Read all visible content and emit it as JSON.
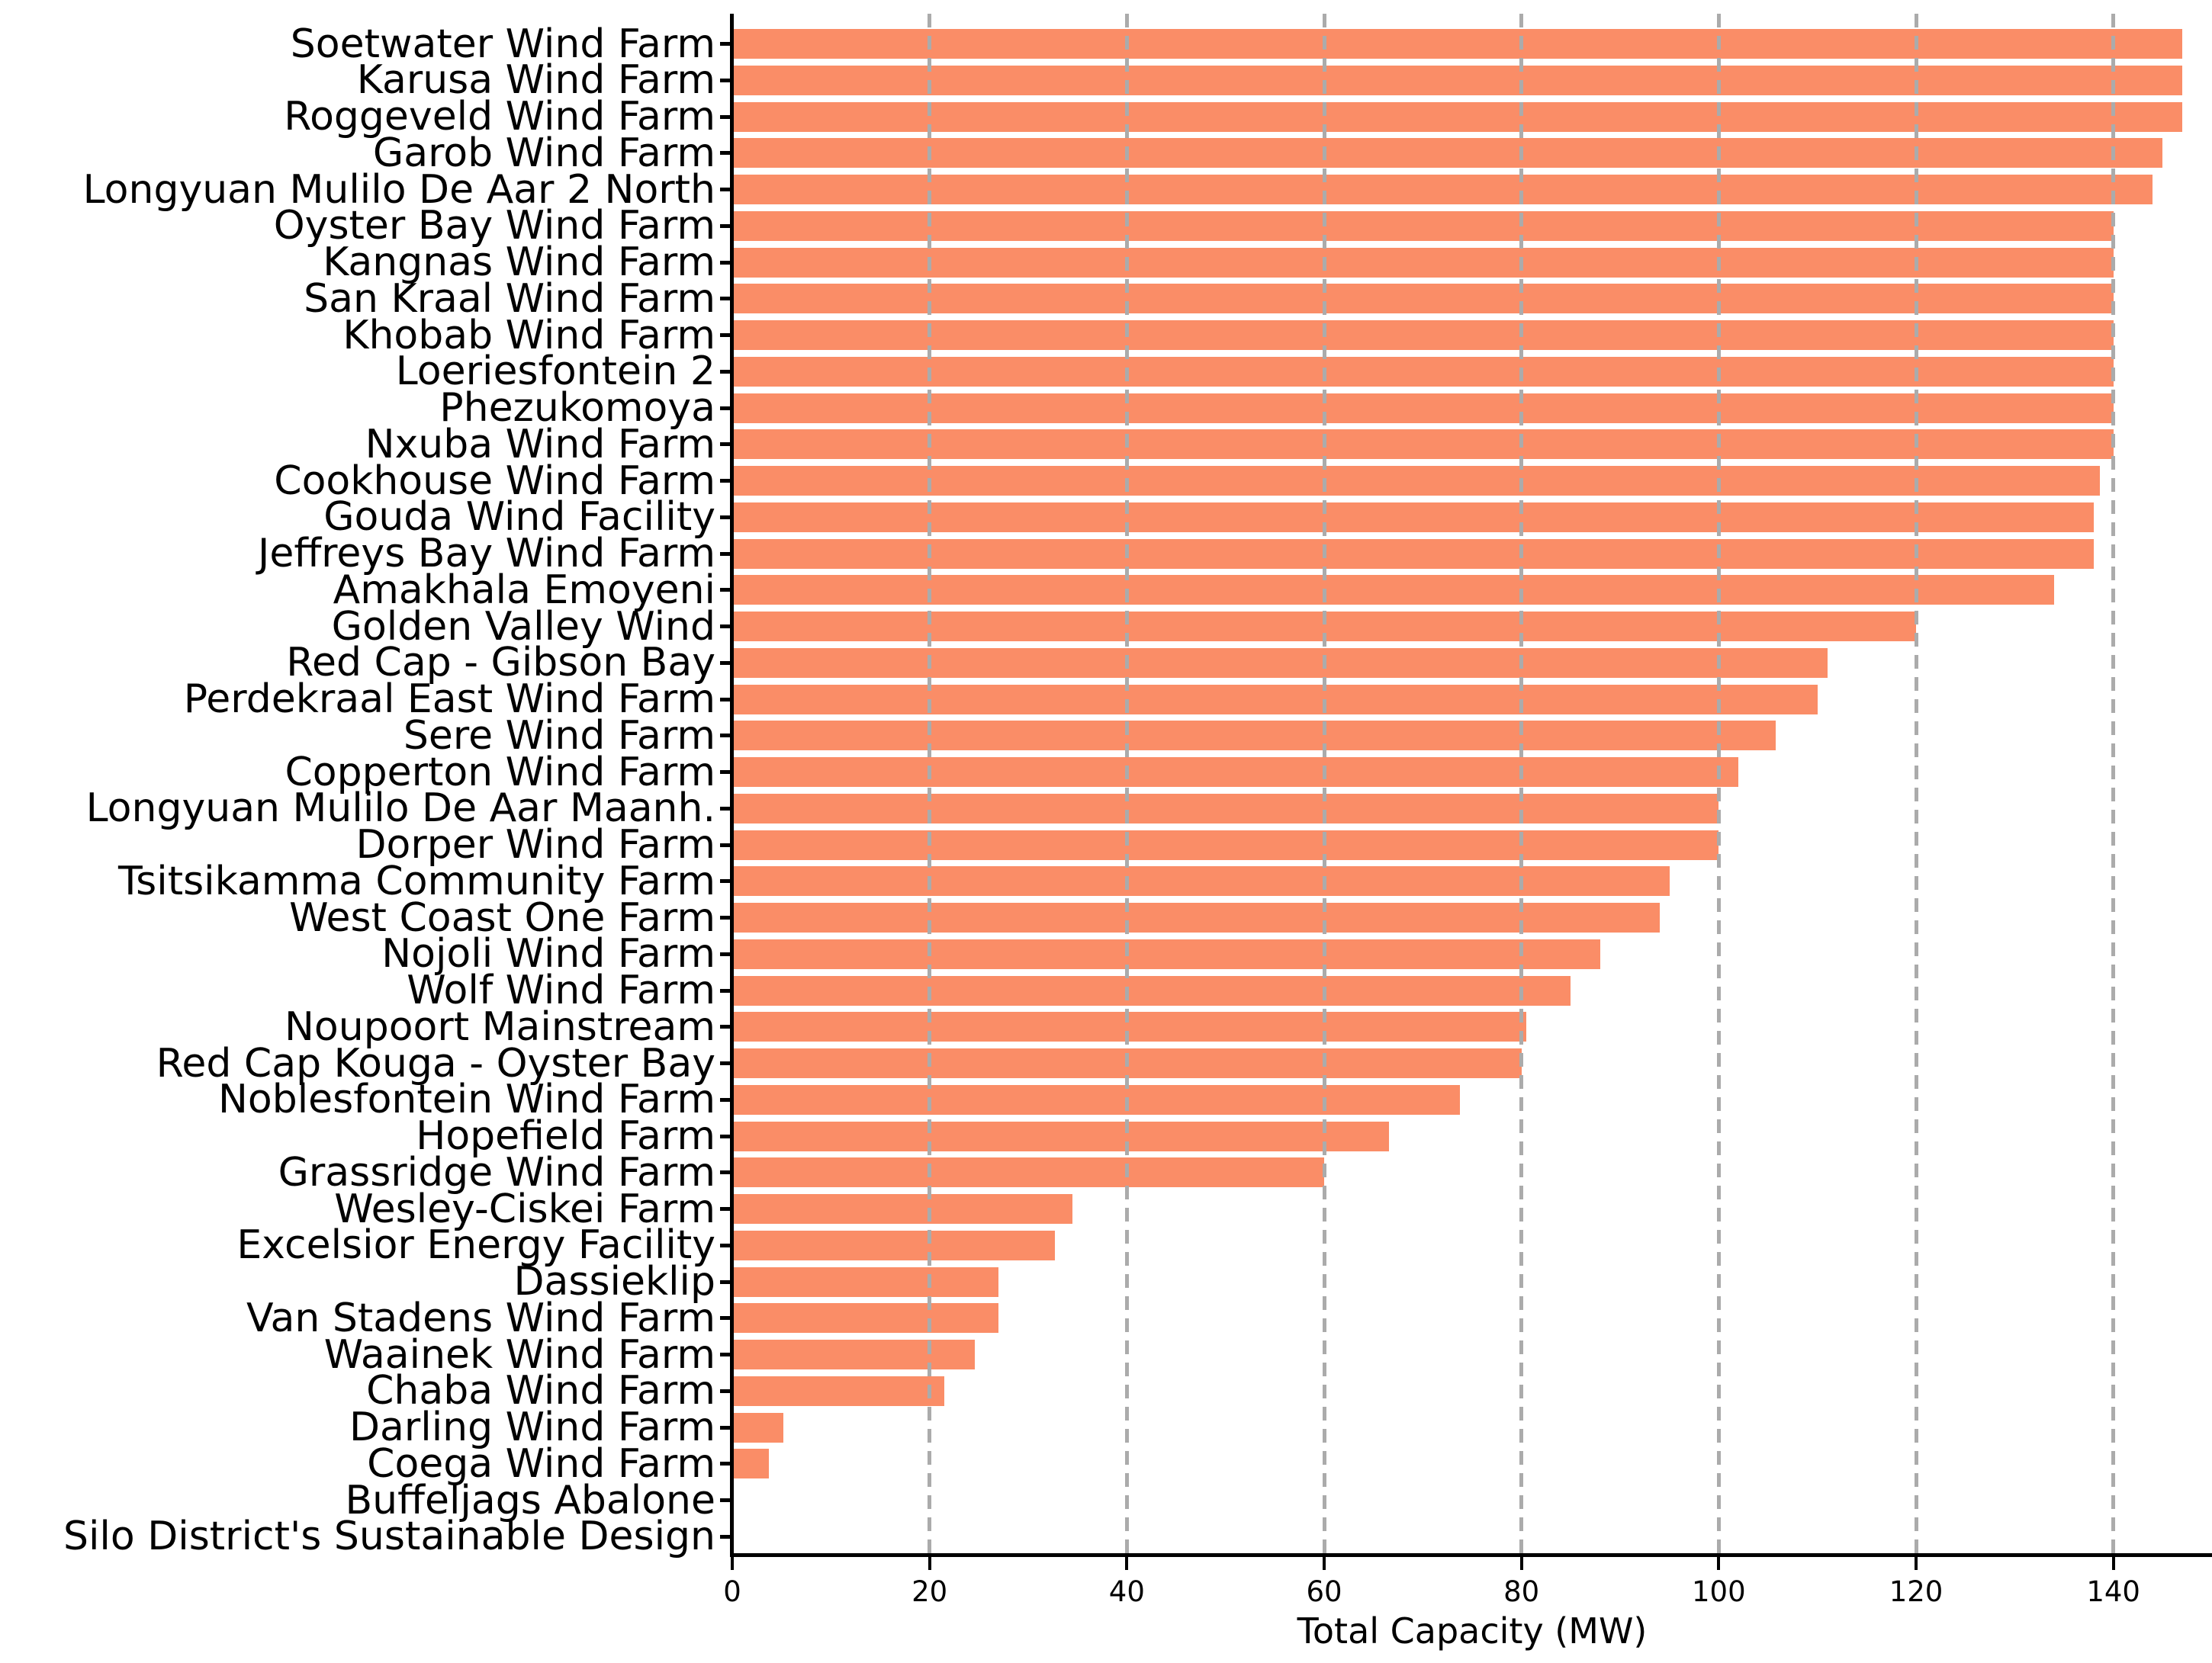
{
  "chart_data": {
    "type": "bar",
    "orientation": "horizontal",
    "title": "",
    "xlabel": "Total Capacity (MW)",
    "ylabel": "",
    "xlim": [
      0,
      150
    ],
    "xticks": [
      0,
      20,
      40,
      60,
      80,
      100,
      120,
      140
    ],
    "grid": "vertical dashed gridlines, drawn above bars",
    "legend": "none",
    "bar_color": "#fa8d67",
    "grid_color": "#ababab",
    "axis_color": "#000000",
    "background_color": "#ffffff",
    "categories": [
      "Soetwater Wind Farm",
      "Karusa Wind Farm",
      "Roggeveld Wind Farm",
      "Garob Wind Farm",
      "Longyuan Mulilo De Aar 2 North",
      "Oyster Bay Wind Farm",
      "Kangnas Wind Farm",
      "San Kraal Wind Farm",
      "Khobab Wind Farm",
      "Loeriesfontein 2",
      "Phezukomoya",
      "Nxuba Wind Farm",
      "Cookhouse Wind Farm",
      "Gouda Wind Facility",
      "Jeffreys Bay Wind Farm",
      "Amakhala Emoyeni",
      "Golden Valley Wind",
      "Red Cap - Gibson Bay",
      "Perdekraal East Wind Farm",
      "Sere Wind Farm",
      "Copperton Wind Farm",
      "Longyuan Mulilo De Aar Maanh.",
      "Dorper Wind Farm",
      "Tsitsikamma Community Farm",
      "West Coast One Farm",
      "Nojoli Wind Farm",
      "Wolf Wind Farm",
      "Noupoort Mainstream",
      "Red Cap Kouga - Oyster Bay",
      "Noblesfontein Wind Farm",
      "Hopefield Farm",
      "Grassridge Wind Farm",
      "Wesley-Ciskei Farm",
      "Excelsior Energy Facility",
      "Dassieklip",
      "Van Stadens Wind Farm",
      "Waainek Wind Farm",
      "Chaba Wind Farm",
      "Darling Wind Farm",
      "Coega Wind Farm",
      "Buffeljags Abalone",
      "Silo District's Sustainable Design"
    ],
    "values": [
      147,
      147,
      147,
      145,
      144,
      140,
      140,
      140,
      140,
      140,
      140,
      140,
      138.6,
      138,
      138,
      134,
      120,
      111,
      110,
      105.8,
      102,
      100,
      100,
      95,
      94,
      88,
      85,
      80.5,
      80,
      73.8,
      66.6,
      60,
      34.5,
      32.7,
      27,
      27,
      24.6,
      21.5,
      5.2,
      3.7,
      0,
      0
    ]
  }
}
